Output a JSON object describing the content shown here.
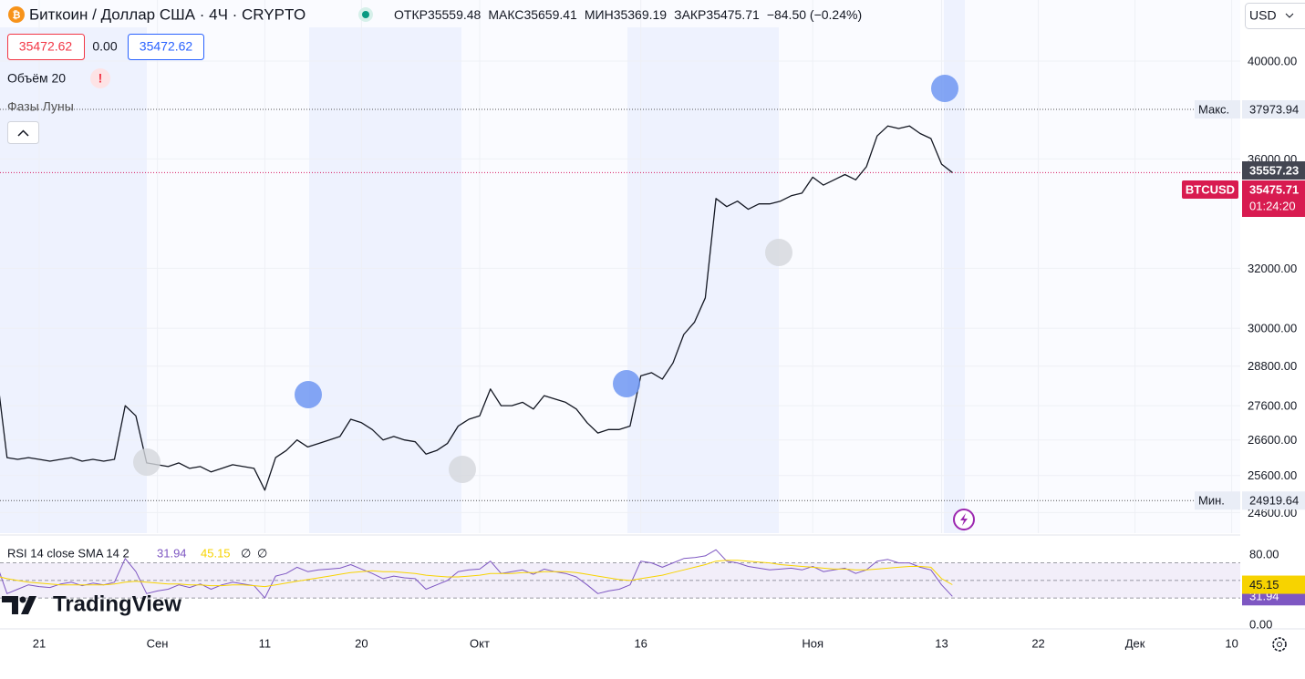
{
  "header": {
    "symbol": "Биткоин / Доллар США · 4Ч · CRYPTO",
    "ohlc": [
      {
        "label": "ОТКР",
        "value": "35559.48"
      },
      {
        "label": "МАКС",
        "value": "35659.41"
      },
      {
        "label": "МИН",
        "value": "35369.19"
      },
      {
        "label": "ЗАКР",
        "value": "35475.71"
      }
    ],
    "change": "−84.50 (−0.24%)",
    "bid": "35472.62",
    "spread": "0.00",
    "ask": "35472.62",
    "currency": "USD"
  },
  "indicators": {
    "volume": "Объём 20",
    "volume_alert": "!",
    "moon": "Фазы Луны"
  },
  "branding": "TradingView",
  "chart_data": [
    {
      "type": "line",
      "log_scale": true,
      "grid": true,
      "categories": [
        null,
        null,
        null,
        null,
        "21",
        null,
        null,
        null,
        null,
        null,
        null,
        null,
        null,
        null,
        null,
        "Сен",
        null,
        null,
        null,
        null,
        null,
        null,
        null,
        null,
        null,
        "11",
        null,
        null,
        null,
        null,
        null,
        null,
        null,
        null,
        "20",
        null,
        null,
        null,
        null,
        null,
        null,
        null,
        null,
        null,
        null,
        "Окт",
        null,
        null,
        null,
        null,
        null,
        null,
        null,
        null,
        null,
        null,
        null,
        null,
        null,
        null,
        "16",
        null,
        null,
        null,
        null,
        null,
        null,
        null,
        null,
        null,
        null,
        null,
        null,
        null,
        null,
        null,
        "Ноя",
        null,
        null,
        null,
        null,
        null,
        null,
        null,
        null,
        null,
        null,
        null,
        "13",
        null,
        null,
        null,
        null,
        null,
        null,
        null,
        null,
        "22",
        null,
        null,
        null,
        null,
        null,
        null,
        null,
        null,
        "Дек",
        null,
        null,
        null,
        null,
        null,
        null,
        null,
        null,
        "10"
      ],
      "series": [
        {
          "color": "#131722",
          "values": [
            28700,
            26100,
            26050,
            26100,
            26050,
            26000,
            26050,
            26100,
            26000,
            26050,
            26000,
            26050,
            27600,
            27300,
            25950,
            25900,
            25850,
            25950,
            25800,
            25850,
            25700,
            25800,
            25900,
            25850,
            25800,
            25200,
            26100,
            26300,
            26600,
            26400,
            26500,
            26600,
            26700,
            27200,
            27100,
            26900,
            26600,
            26700,
            26600,
            26550,
            26200,
            26300,
            26500,
            27000,
            27200,
            27300,
            28100,
            27600,
            27600,
            27700,
            27500,
            27900,
            27800,
            27700,
            27500,
            27100,
            26800,
            26900,
            26900,
            27000,
            28500,
            28600,
            28400,
            28900,
            29800,
            30200,
            31000,
            34500,
            34200,
            34400,
            34100,
            34300,
            34300,
            34400,
            34600,
            34700,
            35300,
            35000,
            35200,
            35400,
            35200,
            35700,
            36900,
            37300,
            37200,
            37300,
            37000,
            36800,
            35800,
            35475.71,
            null,
            null,
            null,
            null,
            null,
            null,
            null,
            null,
            null,
            null,
            null,
            null,
            null,
            null,
            null,
            null,
            null,
            null,
            null,
            null,
            null,
            null,
            null,
            null,
            null,
            null
          ]
        }
      ],
      "ylim": [
        24060,
        42720
      ],
      "yticks": [
        {
          "value": 40000,
          "label": "40000.00"
        },
        {
          "value": 36000,
          "label": "36000.00"
        },
        {
          "value": 32000,
          "label": "32000.00"
        },
        {
          "value": 30000,
          "label": "30000.00"
        },
        {
          "value": 28800,
          "label": "28800.00"
        },
        {
          "value": 27600,
          "label": "27600.00"
        },
        {
          "value": 26600,
          "label": "26600.00"
        },
        {
          "value": 25600,
          "label": "25600.00"
        },
        {
          "value": 24600,
          "label": "24600.00"
        }
      ],
      "high_label": "Макс.",
      "high": 37973.94,
      "low_label": "Мин.",
      "low": 24919.64,
      "prev": 35557.23,
      "symbol": "BTCUSD",
      "countdown": "01:24:20"
    },
    {
      "type": "line",
      "title": "RSI 14 close SMA 14 2",
      "legend_extra": [
        "∅",
        "∅"
      ],
      "series": [
        {
          "color": "#7e57c2",
          "values": [
            70,
            35,
            40,
            45,
            43,
            42,
            46,
            48,
            44,
            47,
            45,
            48,
            75,
            60,
            35,
            38,
            40,
            45,
            42,
            46,
            40,
            45,
            48,
            46,
            44,
            30,
            55,
            58,
            65,
            60,
            62,
            63,
            64,
            68,
            63,
            58,
            52,
            55,
            53,
            52,
            40,
            45,
            50,
            60,
            62,
            63,
            72,
            58,
            60,
            62,
            57,
            63,
            60,
            58,
            54,
            45,
            35,
            38,
            40,
            45,
            72,
            70,
            65,
            70,
            75,
            76,
            78,
            85,
            72,
            70,
            66,
            64,
            62,
            63,
            64,
            62,
            66,
            60,
            62,
            64,
            58,
            62,
            72,
            74,
            70,
            70,
            65,
            62,
            45,
            31.94,
            null,
            null,
            null,
            null,
            null,
            null,
            null,
            null,
            null,
            null,
            null,
            null,
            null,
            null,
            null,
            null,
            null,
            null,
            null,
            null,
            null,
            null,
            null,
            null,
            null,
            null
          ]
        },
        {
          "color": "#f7d300",
          "values": [
            55,
            52,
            50,
            48,
            47,
            46,
            45,
            45,
            45,
            45,
            45,
            46,
            48,
            49,
            48,
            47,
            46,
            46,
            45,
            45,
            44,
            44,
            45,
            45,
            44,
            43,
            45,
            47,
            49,
            51,
            53,
            55,
            57,
            59,
            60,
            61,
            60,
            60,
            59,
            58,
            56,
            55,
            54,
            54,
            55,
            56,
            58,
            58,
            58,
            59,
            59,
            60,
            60,
            60,
            59,
            57,
            55,
            53,
            51,
            50,
            52,
            54,
            56,
            59,
            62,
            65,
            68,
            72,
            73,
            73,
            72,
            71,
            70,
            68,
            67,
            66,
            65,
            64,
            63,
            63,
            62,
            62,
            63,
            64,
            65,
            66,
            66,
            65,
            52,
            45.15,
            null,
            null,
            null,
            null,
            null,
            null,
            null,
            null,
            null,
            null,
            null,
            null,
            null,
            null,
            null,
            null,
            null,
            null,
            null,
            null,
            null,
            null,
            null,
            null,
            null,
            null
          ]
        }
      ],
      "ylim": [
        -5.2,
        98.7
      ],
      "yticks": [
        {
          "value": 80,
          "label": "80.00"
        },
        {
          "value": 0,
          "label": "0.00"
        }
      ],
      "bands": [
        70,
        50,
        30
      ]
    }
  ]
}
